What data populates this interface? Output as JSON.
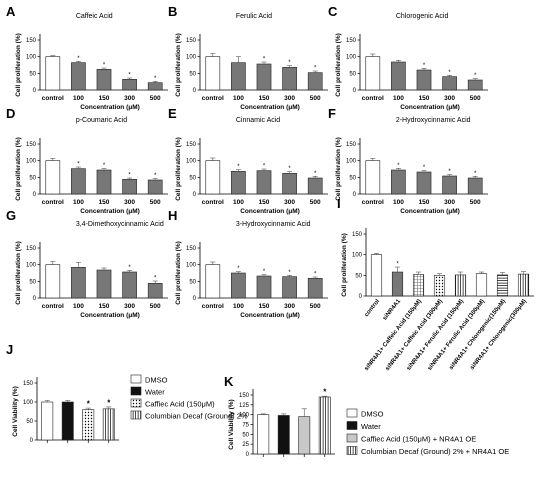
{
  "chart_data": [
    {
      "panel": "A",
      "type": "bar",
      "title": "Caffeic Acid",
      "xlabel": "Concentration (μM)",
      "ylabel": "Cell proliferation (%)",
      "ylim": [
        0,
        150
      ],
      "yticks": [
        0,
        50,
        100,
        150
      ],
      "categories": [
        "control",
        "100",
        "150",
        "300",
        "500"
      ],
      "values": [
        100,
        82,
        62,
        32,
        22
      ],
      "errors": [
        3,
        4,
        4,
        4,
        4
      ],
      "significant": [
        false,
        true,
        true,
        true,
        true
      ],
      "bar_fills": [
        "white",
        "gray",
        "gray",
        "gray",
        "gray"
      ]
    },
    {
      "panel": "B",
      "type": "bar",
      "title": "Ferulic Acid",
      "xlabel": "Concentration (μM)",
      "ylabel": "Cell proliferation (%)",
      "ylim": [
        0,
        150
      ],
      "yticks": [
        0,
        50,
        100,
        150
      ],
      "categories": [
        "control",
        "100",
        "150",
        "300",
        "500"
      ],
      "values": [
        100,
        82,
        78,
        68,
        52
      ],
      "errors": [
        10,
        18,
        6,
        5,
        5
      ],
      "significant": [
        false,
        false,
        true,
        true,
        true
      ],
      "bar_fills": [
        "white",
        "gray",
        "gray",
        "gray",
        "gray"
      ]
    },
    {
      "panel": "C",
      "type": "bar",
      "title": "Chlorogenic Acid",
      "xlabel": "Concentration (μM)",
      "ylabel": "Cell proliferation (%)",
      "ylim": [
        0,
        150
      ],
      "yticks": [
        0,
        50,
        100,
        150
      ],
      "categories": [
        "control",
        "100",
        "150",
        "300",
        "500"
      ],
      "values": [
        100,
        84,
        60,
        40,
        30
      ],
      "errors": [
        8,
        5,
        5,
        4,
        4
      ],
      "significant": [
        false,
        false,
        true,
        true,
        true
      ],
      "bar_fills": [
        "white",
        "gray",
        "gray",
        "gray",
        "gray"
      ]
    },
    {
      "panel": "D",
      "type": "bar",
      "title": "p-Coumaric Acid",
      "xlabel": "Concentration (μM)",
      "ylabel": "Cell proliferation (%)",
      "ylim": [
        0,
        150
      ],
      "yticks": [
        0,
        50,
        100,
        150
      ],
      "categories": [
        "control",
        "100",
        "150",
        "300",
        "500"
      ],
      "values": [
        100,
        76,
        72,
        44,
        42
      ],
      "errors": [
        7,
        5,
        4,
        4,
        4
      ],
      "significant": [
        false,
        true,
        true,
        true,
        true
      ],
      "bar_fills": [
        "white",
        "gray",
        "gray",
        "gray",
        "gray"
      ]
    },
    {
      "panel": "E",
      "type": "bar",
      "title": "Cinnamic Acid",
      "xlabel": "Concentration (μM)",
      "ylabel": "Cell proliferation (%)",
      "ylim": [
        0,
        150
      ],
      "yticks": [
        0,
        50,
        100,
        150
      ],
      "categories": [
        "control",
        "100",
        "150",
        "300",
        "500"
      ],
      "values": [
        100,
        68,
        70,
        62,
        48
      ],
      "errors": [
        8,
        5,
        5,
        5,
        5
      ],
      "significant": [
        false,
        true,
        true,
        true,
        true
      ],
      "bar_fills": [
        "white",
        "gray",
        "gray",
        "gray",
        "gray"
      ]
    },
    {
      "panel": "F",
      "type": "bar",
      "title": "2-Hydroxycinnamic Acid",
      "xlabel": "Concentration (μM)",
      "ylabel": "Cell proliferation (%)",
      "ylim": [
        0,
        150
      ],
      "yticks": [
        0,
        50,
        100,
        150
      ],
      "categories": [
        "control",
        "100",
        "150",
        "300",
        "500"
      ],
      "values": [
        100,
        72,
        66,
        54,
        48
      ],
      "errors": [
        7,
        5,
        4,
        4,
        5
      ],
      "significant": [
        false,
        true,
        true,
        true,
        true
      ],
      "bar_fills": [
        "white",
        "gray",
        "gray",
        "gray",
        "gray"
      ]
    },
    {
      "panel": "G",
      "type": "bar",
      "title": "3,4-Dimethoxycinnamic Acid",
      "xlabel": "Concentration (μM)",
      "ylabel": "Cell proliferation (%)",
      "ylim": [
        0,
        150
      ],
      "yticks": [
        0,
        50,
        100,
        150
      ],
      "categories": [
        "control",
        "100",
        "150",
        "300",
        "500"
      ],
      "values": [
        100,
        92,
        84,
        78,
        44
      ],
      "errors": [
        10,
        15,
        6,
        5,
        7
      ],
      "significant": [
        false,
        false,
        false,
        true,
        true
      ],
      "bar_fills": [
        "white",
        "gray",
        "gray",
        "gray",
        "gray"
      ]
    },
    {
      "panel": "H",
      "type": "bar",
      "title": "3-Hydroxycinnamic Acid",
      "xlabel": "Concentration (μM)",
      "ylabel": "Cell proliferation (%)",
      "ylim": [
        0,
        150
      ],
      "yticks": [
        0,
        50,
        100,
        150
      ],
      "categories": [
        "control",
        "100",
        "150",
        "300",
        "500"
      ],
      "values": [
        100,
        75,
        66,
        64,
        59
      ],
      "errors": [
        8,
        4,
        4,
        4,
        4
      ],
      "significant": [
        false,
        true,
        true,
        true,
        true
      ],
      "bar_fills": [
        "white",
        "gray",
        "gray",
        "gray",
        "gray"
      ]
    },
    {
      "panel": "I",
      "type": "bar",
      "title": "",
      "xlabel": "",
      "ylabel": "Cell proliferation (%)",
      "ylim": [
        0,
        150
      ],
      "yticks": [
        0,
        50,
        100,
        150
      ],
      "categories": [
        "control",
        "siNR4A1",
        "siNR4A1+ Caffeic Acid (150μM)",
        "siNR4A1+ Caffeic Acid (300μM)",
        "siNR4A1+ Ferulic Acid (150μM)",
        "siNR4A1+ Ferulic Acid (300μM)",
        "siNR4A1+ Chlorogenic(150μM)",
        "siNR4A1+ Chlorogenic(300μM)"
      ],
      "values": [
        100,
        58,
        52,
        50,
        51,
        54,
        51,
        53
      ],
      "errors": [
        3,
        12,
        6,
        4,
        7,
        4,
        6,
        6
      ],
      "significant": [
        false,
        true,
        false,
        false,
        false,
        false,
        false,
        false
      ],
      "bar_fills": [
        "white",
        "gray",
        "grid",
        "dots",
        "vlines",
        "white",
        "hlines",
        "vlines"
      ]
    },
    {
      "panel": "J",
      "type": "bar",
      "title": "",
      "xlabel": "",
      "ylabel": "Cell Viability (%)",
      "ylim": [
        0,
        150
      ],
      "yticks": [
        0,
        50,
        100,
        150
      ],
      "categories": [
        "DMSO",
        "Water",
        "Caffiec Acid (150μM)",
        "Columbian Decaf (Ground) 2%"
      ],
      "values": [
        100,
        100,
        80,
        82
      ],
      "errors": [
        4,
        4,
        4,
        5
      ],
      "significant": [
        false,
        false,
        true,
        true
      ],
      "bar_fills": [
        "white",
        "black",
        "dots",
        "vlines"
      ],
      "legend": "right"
    },
    {
      "panel": "K",
      "type": "bar",
      "title": "",
      "xlabel": "",
      "ylabel": "Cell Viability (%)",
      "ylim": [
        0,
        150
      ],
      "yticks": [
        0,
        25,
        50,
        75,
        100,
        125,
        150
      ],
      "categories": [
        "DMSO",
        "Water",
        "Caffiec Acid (150μM) + NR4A1 OE",
        "Columbian Decaf (Ground) 2% + NR4A1 OE"
      ],
      "values": [
        100,
        98,
        95,
        145
      ],
      "errors": [
        2,
        4,
        20,
        2
      ],
      "significant": [
        false,
        false,
        false,
        true
      ],
      "bar_fills": [
        "white",
        "black",
        "lightgray",
        "vlines"
      ],
      "legend": "right"
    }
  ],
  "labels": {
    "A": "A",
    "B": "B",
    "C": "C",
    "D": "D",
    "E": "E",
    "F": "F",
    "G": "G",
    "H": "H",
    "I": "I",
    "J": "J",
    "K": "K"
  }
}
